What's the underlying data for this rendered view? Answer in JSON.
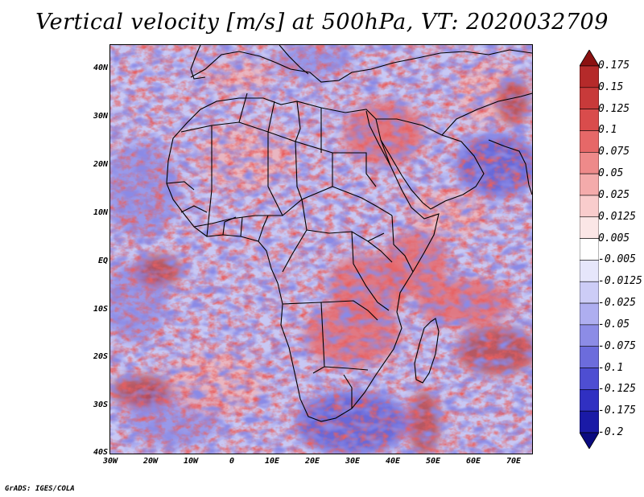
{
  "title": "Vertical velocity [m/s] at 500hPa, VT: 2020032709",
  "credit": "GrADS: IGES/COLA",
  "map": {
    "lat_labels": [
      "40N",
      "30N",
      "20N",
      "10N",
      "EQ",
      "10S",
      "20S",
      "30S",
      "40S"
    ],
    "lon_labels": [
      "30W",
      "20W",
      "10W",
      "0",
      "10E",
      "20E",
      "30E",
      "40E",
      "50E",
      "60E",
      "70E"
    ],
    "field_colors": {
      "strong_sink": "#b03030",
      "sink": "#e86060",
      "weak_sink": "#f4b0b0",
      "neutral": "#ffffff",
      "weak_rise": "#c8c8f4",
      "rise": "#8a8ae6",
      "strong_rise": "#4a4ad0"
    },
    "boundary_color": "#000000"
  },
  "colorbar": {
    "labels": [
      "0.175",
      "0.15",
      "0.125",
      "0.1",
      "0.075",
      "0.05",
      "0.025",
      "0.0125",
      "0.005",
      "-0.005",
      "-0.0125",
      "-0.025",
      "-0.05",
      "-0.075",
      "-0.1",
      "-0.125",
      "-0.175",
      "-0.2"
    ],
    "colors": [
      "#9a1d1d",
      "#b52a2a",
      "#c83a3a",
      "#d94c4c",
      "#e66868",
      "#ee8a8a",
      "#f4abab",
      "#f9cccc",
      "#fbe6e6",
      "#ffffff",
      "#e6e6fb",
      "#ccccf6",
      "#aeaef0",
      "#8c8ce6",
      "#6c6cdc",
      "#4e4ed2",
      "#3030c2",
      "#1a1aa6",
      "#0c0c86"
    ],
    "top_arrow_color": "#8b1111",
    "bottom_arrow_color": "#0a0a80"
  }
}
